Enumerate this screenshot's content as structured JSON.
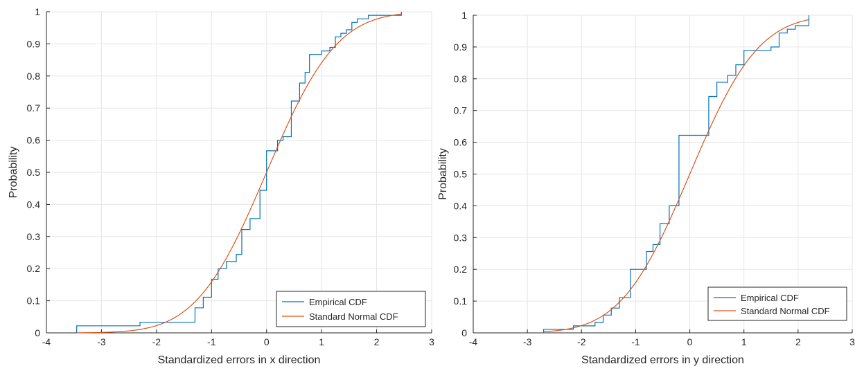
{
  "chart_data": [
    {
      "type": "line",
      "xlabel": "Standardized errors in x direction",
      "ylabel": "Probability",
      "xlim": [
        -4,
        3
      ],
      "ylim": [
        0,
        1
      ],
      "xticks": [
        "-4",
        "-3",
        "-2",
        "-1",
        "0",
        "1",
        "2",
        "3"
      ],
      "yticks": [
        "0",
        "0.1",
        "0.2",
        "0.3",
        "0.4",
        "0.5",
        "0.6",
        "0.7",
        "0.8",
        "0.9",
        "1"
      ],
      "grid": true,
      "legend_position": "bottom-right",
      "series": [
        {
          "name": "Empirical CDF",
          "color": "#0072BD",
          "style": "stairs",
          "x": [
            -3.45,
            -2.3,
            -1.3,
            -1.15,
            -1.0,
            -0.88,
            -0.73,
            -0.55,
            -0.45,
            -0.3,
            -0.12,
            0.0,
            0.2,
            0.3,
            0.45,
            0.6,
            0.7,
            0.78,
            0.92,
            1.0,
            1.15,
            1.25,
            1.35,
            1.45,
            1.55,
            1.65,
            1.75,
            1.85,
            2.0,
            2.45
          ],
          "y": [
            0.022,
            0.033,
            0.078,
            0.111,
            0.167,
            0.2,
            0.222,
            0.244,
            0.322,
            0.356,
            0.444,
            0.567,
            0.6,
            0.611,
            0.722,
            0.778,
            0.811,
            0.867,
            0.867,
            0.878,
            0.889,
            0.922,
            0.933,
            0.944,
            0.967,
            0.978,
            0.978,
            0.989,
            0.989,
            1.0
          ]
        },
        {
          "name": "Standard Normal CDF",
          "color": "#D95319",
          "style": "normal-cdf",
          "xrange": [
            -3.45,
            2.45
          ]
        }
      ]
    },
    {
      "type": "line",
      "xlabel": "Standardized errors in y direction",
      "ylabel": "Probability",
      "xlim": [
        -4,
        3
      ],
      "ylim": [
        0,
        1
      ],
      "xticks": [
        "-4",
        "-3",
        "-2",
        "-1",
        "0",
        "1",
        "2",
        "3"
      ],
      "yticks": [
        "0",
        "0.1",
        "0.2",
        "0.3",
        "0.4",
        "0.5",
        "0.6",
        "0.7",
        "0.8",
        "0.9",
        "1"
      ],
      "grid": true,
      "legend_position": "bottom-right",
      "series": [
        {
          "name": "Empirical CDF",
          "color": "#0072BD",
          "style": "stairs",
          "x": [
            -2.7,
            -2.15,
            -1.95,
            -1.75,
            -1.6,
            -1.45,
            -1.3,
            -1.1,
            -0.8,
            -0.68,
            -0.55,
            -0.38,
            -0.2,
            0.0,
            0.35,
            0.5,
            0.7,
            0.85,
            1.0,
            1.15,
            1.5,
            1.65,
            1.8,
            1.95,
            2.2
          ],
          "y": [
            0.011,
            0.022,
            0.022,
            0.033,
            0.056,
            0.078,
            0.111,
            0.2,
            0.256,
            0.278,
            0.344,
            0.4,
            0.622,
            0.622,
            0.744,
            0.789,
            0.811,
            0.844,
            0.889,
            0.889,
            0.9,
            0.944,
            0.956,
            0.967,
            1.0
          ]
        },
        {
          "name": "Standard Normal CDF",
          "color": "#D95319",
          "style": "normal-cdf",
          "xrange": [
            -2.7,
            2.2
          ]
        }
      ]
    }
  ]
}
